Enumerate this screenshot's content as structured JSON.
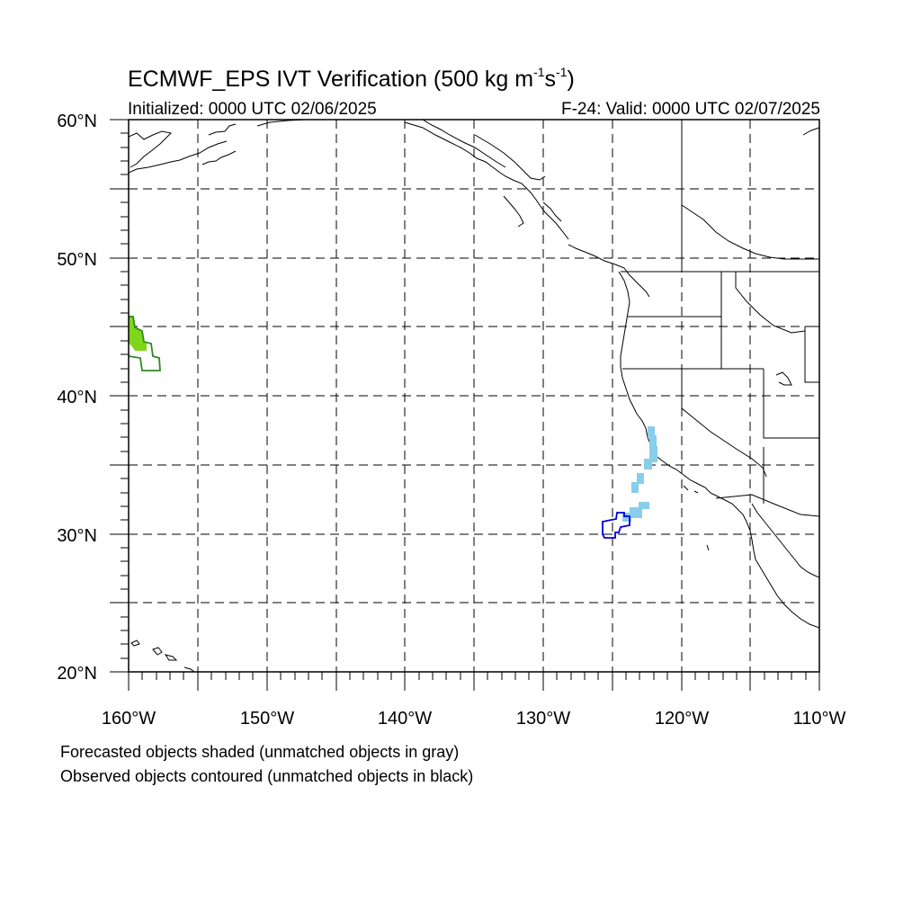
{
  "title": {
    "prefix": "ECMWF_EPS IVT Verification (500 kg m",
    "sup1": "-1",
    "mid": "s",
    "sup2": "-1",
    "suffix": ")"
  },
  "initialized": "Initialized: 0000 UTC 02/06/2025",
  "valid": "F-24: Valid: 0000 UTC 02/07/2025",
  "lat_labels": [
    "60°N",
    "50°N",
    "40°N",
    "30°N",
    "20°N"
  ],
  "lon_labels": [
    "160°W",
    "150°W",
    "140°W",
    "130°W",
    "120°W",
    "110°W"
  ],
  "notes": {
    "forecast": "Forecasted objects shaded (unmatched objects in gray)",
    "observed": "Observed objects contoured (unmatched objects in black)"
  },
  "extent": {
    "lon": [
      -160,
      -110
    ],
    "lat": [
      20,
      60
    ]
  },
  "colors": {
    "grid": "#000000",
    "forecast_green": "#7fd61a",
    "observed_green": "#2e8b22",
    "forecast_blue": "#87ceeb",
    "observed_blue": "#0000dd"
  },
  "objects": [
    {
      "name": "forecast-object-west",
      "kind": "forecast-shaded",
      "color": "forecast_green"
    },
    {
      "name": "observed-object-west",
      "kind": "observed-contour",
      "color": "observed_green"
    },
    {
      "name": "forecast-object-california",
      "kind": "forecast-shaded",
      "color": "forecast_blue"
    },
    {
      "name": "observed-object-california",
      "kind": "observed-contour",
      "color": "observed_blue"
    }
  ]
}
